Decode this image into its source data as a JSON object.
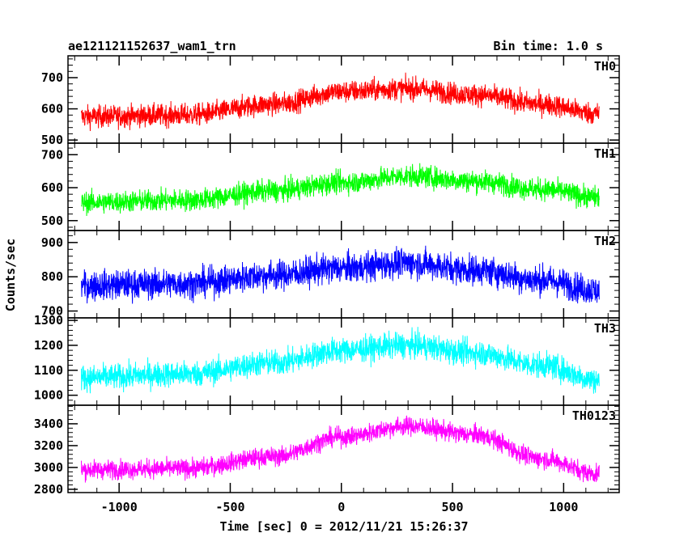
{
  "chart_data": {
    "type": "line",
    "title_left": "ae121121152637_wam1_trn",
    "title_right": "Bin time: 1.0 s",
    "xlabel": "Time [sec] 0 = 2012/11/21 15:26:37",
    "ylabel": "Counts/sec",
    "xlim": [
      -1230,
      1250
    ],
    "x_ticks": [
      -1000,
      -500,
      0,
      500,
      1000
    ],
    "x_range_data": [
      -1170,
      1160
    ],
    "bin_time": 1.0,
    "grid": false,
    "panels": [
      {
        "name": "TH0",
        "color": "#ff0000",
        "ylim": [
          490,
          770
        ],
        "y_ticks": [
          500,
          600,
          700
        ],
        "trend": [
          [
            -1170,
            575
          ],
          [
            -700,
            580
          ],
          [
            -300,
            615
          ],
          [
            0,
            655
          ],
          [
            300,
            665
          ],
          [
            600,
            645
          ],
          [
            900,
            615
          ],
          [
            1160,
            585
          ]
        ],
        "noise_amplitude": 45
      },
      {
        "name": "TH1",
        "color": "#00ff00",
        "ylim": [
          470,
          735
        ],
        "y_ticks": [
          500,
          600,
          700
        ],
        "trend": [
          [
            -1170,
            555
          ],
          [
            -700,
            562
          ],
          [
            -300,
            590
          ],
          [
            0,
            615
          ],
          [
            300,
            635
          ],
          [
            600,
            620
          ],
          [
            900,
            595
          ],
          [
            1160,
            570
          ]
        ],
        "noise_amplitude": 42
      },
      {
        "name": "TH2",
        "color": "#0000ff",
        "ylim": [
          680,
          935
        ],
        "y_ticks": [
          700,
          800,
          900
        ],
        "trend": [
          [
            -1170,
            775
          ],
          [
            -700,
            780
          ],
          [
            -300,
            805
          ],
          [
            0,
            825
          ],
          [
            300,
            840
          ],
          [
            600,
            820
          ],
          [
            900,
            790
          ],
          [
            1160,
            760
          ]
        ],
        "noise_amplitude": 55
      },
      {
        "name": "TH3",
        "color": "#00ffff",
        "ylim": [
          960,
          1310
        ],
        "y_ticks": [
          1000,
          1100,
          1200,
          1300
        ],
        "trend": [
          [
            -1170,
            1070
          ],
          [
            -700,
            1085
          ],
          [
            -300,
            1130
          ],
          [
            0,
            1180
          ],
          [
            300,
            1200
          ],
          [
            600,
            1170
          ],
          [
            900,
            1120
          ],
          [
            1160,
            1060
          ]
        ],
        "noise_amplitude": 65
      },
      {
        "name": "TH0123",
        "color": "#ff00ff",
        "ylim": [
          2770,
          3570
        ],
        "y_ticks": [
          2800,
          3000,
          3200,
          3400
        ],
        "trend": [
          [
            -1170,
            2980
          ],
          [
            -700,
            2990
          ],
          [
            -300,
            3100
          ],
          [
            0,
            3280
          ],
          [
            300,
            3380
          ],
          [
            600,
            3300
          ],
          [
            900,
            3080
          ],
          [
            1160,
            2940
          ]
        ],
        "noise_amplitude": 110
      }
    ]
  }
}
